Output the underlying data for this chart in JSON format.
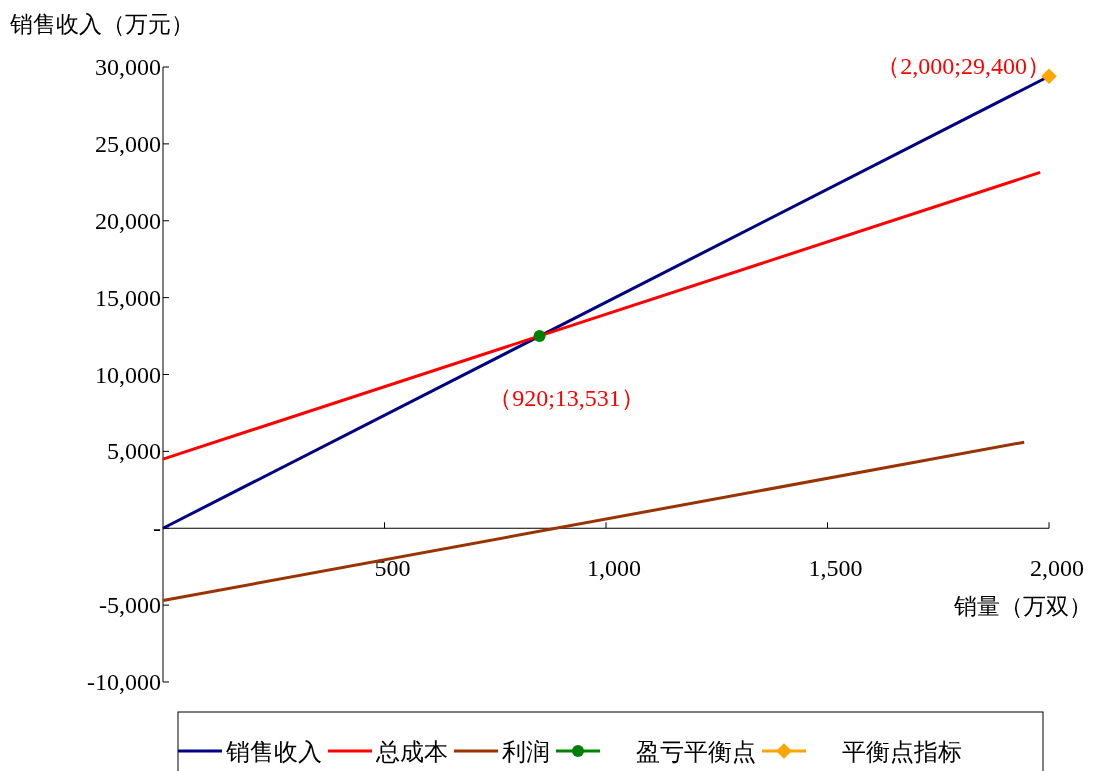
{
  "chart_data": {
    "type": "line",
    "xlabel": "销量（万双）",
    "ylabel": "销售收入（万元）",
    "xlim": [
      0,
      2000
    ],
    "ylim": [
      -10000,
      30000
    ],
    "xticks": [
      {
        "value": 500,
        "label": "500"
      },
      {
        "value": 1000,
        "label": "1,000"
      },
      {
        "value": 1500,
        "label": "1,500"
      },
      {
        "value": 2000,
        "label": "2,000"
      }
    ],
    "yticks": [
      {
        "value": -10000,
        "label": "-10,000"
      },
      {
        "value": -5000,
        "label": "-5,000"
      },
      {
        "value": 0,
        "label": "-"
      },
      {
        "value": 5000,
        "label": "5,000"
      },
      {
        "value": 10000,
        "label": "10,000"
      },
      {
        "value": 15000,
        "label": "15,000"
      },
      {
        "value": 20000,
        "label": "20,000"
      },
      {
        "value": 25000,
        "label": "25,000"
      },
      {
        "value": 30000,
        "label": "30,000"
      }
    ],
    "grid": false,
    "legend": "bottom",
    "series": [
      {
        "name": "销售收入",
        "color": "#000080",
        "x": [
          0,
          2000
        ],
        "values": [
          0,
          29400
        ]
      },
      {
        "name": "总成本",
        "color": "#ff0000",
        "x": [
          0,
          1980
        ],
        "values": [
          4500,
          23150
        ]
      },
      {
        "name": "利润",
        "color": "#993300",
        "x": [
          0,
          1944
        ],
        "values": [
          -4700,
          5600
        ]
      },
      {
        "name": "盈亏平衡点",
        "type": "scatter",
        "marker": "circle",
        "color": "#008000",
        "x": [
          850
        ],
        "values": [
          12500
        ]
      },
      {
        "name": "平衡点指标",
        "type": "scatter",
        "marker": "diamond",
        "color": "#ffa500",
        "x": [
          2000
        ],
        "values": [
          29400
        ]
      }
    ],
    "annotations": [
      {
        "text": "（920;13,531）",
        "x": 850,
        "y": 12500
      },
      {
        "text": "（2,000;29,400）",
        "x": 2000,
        "y": 29400
      }
    ]
  }
}
